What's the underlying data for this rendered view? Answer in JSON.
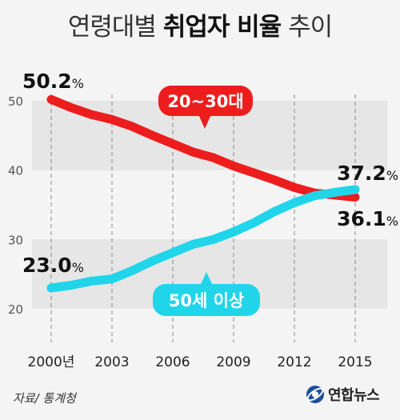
{
  "title": {
    "prefix": "연령대별",
    "emphasis": "취업자 비율",
    "suffix": "추이"
  },
  "source": "자료/ 통계청",
  "logo": {
    "text": "연합뉴스"
  },
  "colors": {
    "series_young": "#ee1d1d",
    "series_old": "#20d5ea",
    "band": "#e6e6e6",
    "background": "#f4f4f4"
  },
  "chart_data": {
    "type": "line",
    "x": [
      2000,
      2001,
      2002,
      2003,
      2004,
      2005,
      2006,
      2007,
      2008,
      2009,
      2010,
      2011,
      2012,
      2013,
      2014,
      2015
    ],
    "x_ticks": [
      2000,
      2003,
      2006,
      2009,
      2012,
      2015
    ],
    "x_tick_labels": [
      "2000년",
      "2003",
      "2006",
      "2009",
      "2012",
      "2015"
    ],
    "ylim": [
      20,
      50
    ],
    "y_ticks": [
      20,
      30,
      40,
      50
    ],
    "grid": "dashed vertical lines at x ticks, alternating horizontal bands",
    "xlabel": "",
    "ylabel": "",
    "series": [
      {
        "name": "20~30대",
        "color": "#ee1d1d",
        "values": [
          50.2,
          49.0,
          48.0,
          47.3,
          46.3,
          45.0,
          43.8,
          42.6,
          41.8,
          40.6,
          39.6,
          38.6,
          37.5,
          36.7,
          36.4,
          36.1
        ],
        "start_label": "50.2%",
        "end_label": "36.1%"
      },
      {
        "name": "50세 이상",
        "color": "#20d5ea",
        "values": [
          23.0,
          23.4,
          24.0,
          24.3,
          25.5,
          26.9,
          28.1,
          29.3,
          30.0,
          31.1,
          32.4,
          34.0,
          35.3,
          36.3,
          36.8,
          37.2
        ],
        "start_label": "23.0%",
        "end_label": "37.2%"
      }
    ]
  }
}
